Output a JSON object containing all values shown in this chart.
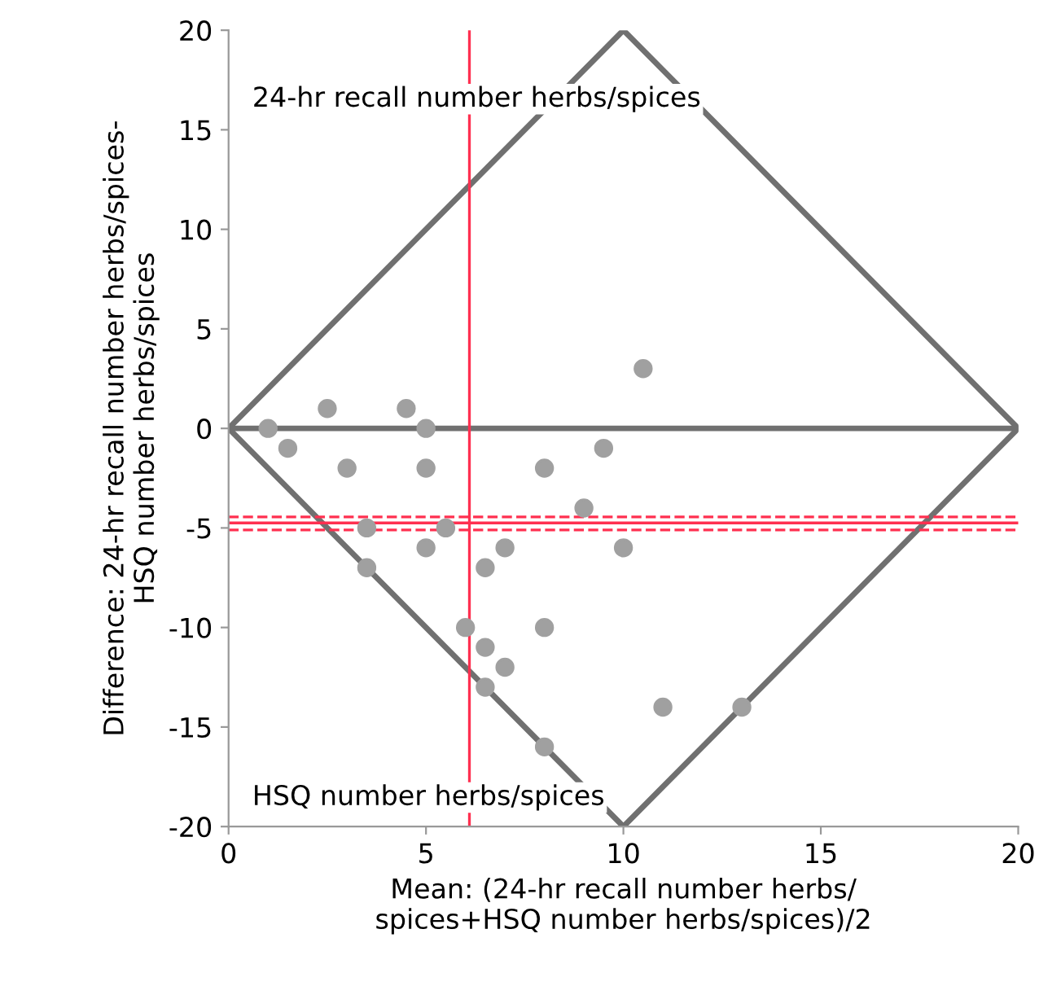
{
  "chart_data": {
    "type": "scatter",
    "xlabel": "Mean: (24-hr recall number herbs/\nspices+HSQ number herbs/spices)/2",
    "ylabel": "Difference: 24-hr recall number herbs/spices-\nHSQ number herbs/spices",
    "series": [
      {
        "color": "#a0a0a0",
        "marker": "circle",
        "x": [
          1,
          1.5,
          2.5,
          3,
          3.5,
          3.5,
          4.5,
          5,
          5,
          5,
          5.5,
          6,
          6.5,
          6.5,
          6.5,
          7,
          7,
          8,
          8,
          8,
          9,
          9.5,
          10,
          10.5,
          11,
          13
        ],
        "values": [
          0,
          -1,
          1,
          -2,
          -5,
          -7,
          1,
          0,
          -2,
          -6,
          -5,
          -10,
          -7,
          -11,
          -13,
          -6,
          -12,
          -2,
          -10,
          -16,
          -4,
          -1,
          -6,
          3,
          -14,
          -14
        ]
      },
      {
        "type": "line",
        "color": "#707070",
        "x": [
          0,
          10,
          20
        ],
        "values": [
          0,
          20,
          0
        ]
      },
      {
        "type": "line",
        "color": "#707070",
        "x": [
          0,
          10,
          20
        ],
        "values": [
          0,
          -20,
          0
        ]
      }
    ],
    "ref_lines": [
      {
        "axis": "y",
        "value": 0,
        "color": "#707070"
      },
      {
        "axis": "y",
        "value": -4.75,
        "color": "#ff3050"
      },
      {
        "axis": "y",
        "value": -4.45,
        "color": "#ff3050",
        "line_style": "dashed"
      },
      {
        "axis": "y",
        "value": -5.1,
        "color": "#ff3050",
        "line_style": "dashed"
      },
      {
        "axis": "x",
        "value": 6.1,
        "color": "#ff3050"
      }
    ],
    "annotations": [
      "24-hr recall number herbs/spices",
      "HSQ number herbs/spices"
    ],
    "xlim": [
      0,
      20
    ],
    "ylim": [
      -20,
      20
    ],
    "xticks": [
      0,
      5,
      10,
      15,
      20
    ],
    "yticks": [
      -20,
      -15,
      -10,
      -5,
      0,
      5,
      10,
      15,
      20
    ]
  }
}
